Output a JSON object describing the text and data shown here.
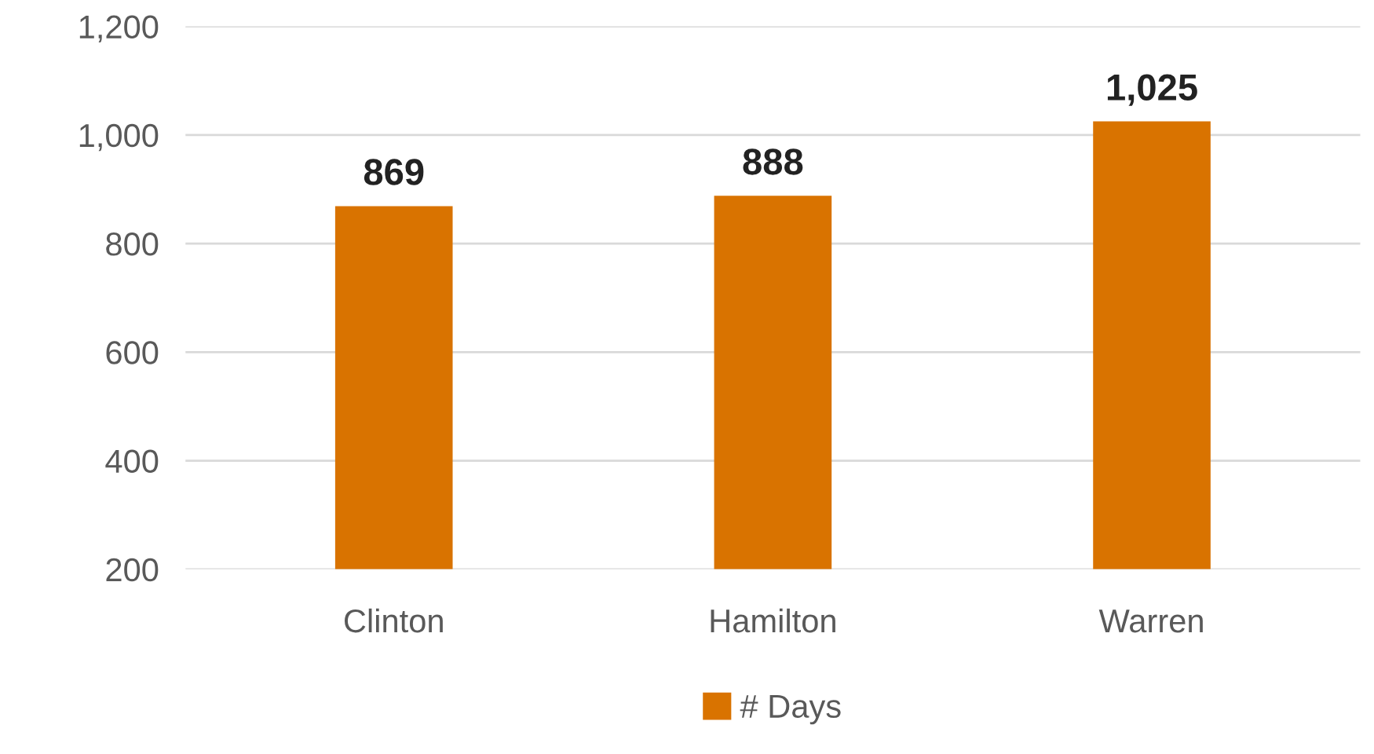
{
  "chart_data": {
    "type": "bar",
    "categories": [
      "Clinton",
      "Hamilton",
      "Warren"
    ],
    "series": [
      {
        "name": "# Days",
        "color": "#d97300",
        "values": [
          869,
          888,
          1025
        ]
      }
    ],
    "value_labels": [
      "869",
      "888",
      "1,025"
    ],
    "ylim": [
      200,
      1200
    ],
    "yticks": [
      200,
      400,
      600,
      800,
      {
        "value": 1000,
        "label": "1,000"
      },
      {
        "value": 1200,
        "label": "1,200"
      }
    ],
    "grid": "y",
    "legend": "bottom"
  }
}
